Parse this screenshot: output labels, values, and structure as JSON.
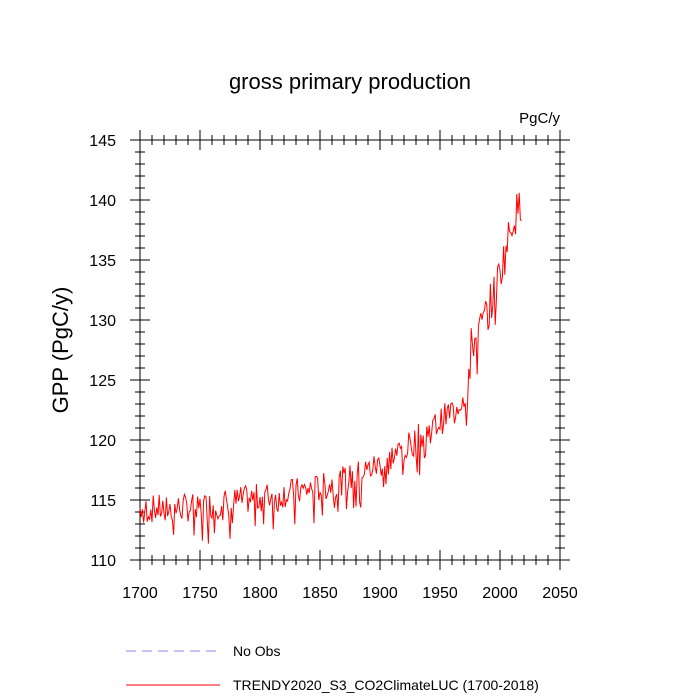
{
  "chart_data": {
    "type": "line",
    "title": "gross primary production",
    "units_label": "PgC/y",
    "xlabel": "",
    "ylabel": "GPP  (PgC/y)",
    "xlim": [
      1700,
      2050
    ],
    "ylim": [
      110,
      145
    ],
    "x_ticks": [
      1700,
      1750,
      1800,
      1850,
      1900,
      1950,
      2000,
      2050
    ],
    "y_ticks": [
      110,
      115,
      120,
      125,
      130,
      135,
      140,
      145
    ],
    "legend": [
      {
        "label": "No Obs",
        "style": "dashed",
        "color": "#8a8af0"
      },
      {
        "label": "TRENDY2020_S3_CO2ClimateLUC (1700-2018)",
        "style": "solid",
        "color": "#ff0000"
      }
    ],
    "series": [
      {
        "name": "TRENDY2020_S3_CO2ClimateLUC (1700-2018)",
        "color": "#ff0000",
        "x_start": 1700,
        "x_step": 1,
        "trend_anchors": [
          [
            1700,
            114.2
          ],
          [
            1750,
            114.4
          ],
          [
            1800,
            115.2
          ],
          [
            1850,
            116.0
          ],
          [
            1875,
            116.8
          ],
          [
            1900,
            118.0
          ],
          [
            1925,
            119.6
          ],
          [
            1950,
            121.5
          ],
          [
            1965,
            123.0
          ],
          [
            1972,
            124.0
          ],
          [
            1976,
            127.8
          ],
          [
            1985,
            129.5
          ],
          [
            1995,
            132.2
          ],
          [
            2005,
            135.8
          ],
          [
            2010,
            138.3
          ],
          [
            2018,
            139.7
          ]
        ],
        "noise_amplitude": 1.2
      }
    ]
  }
}
